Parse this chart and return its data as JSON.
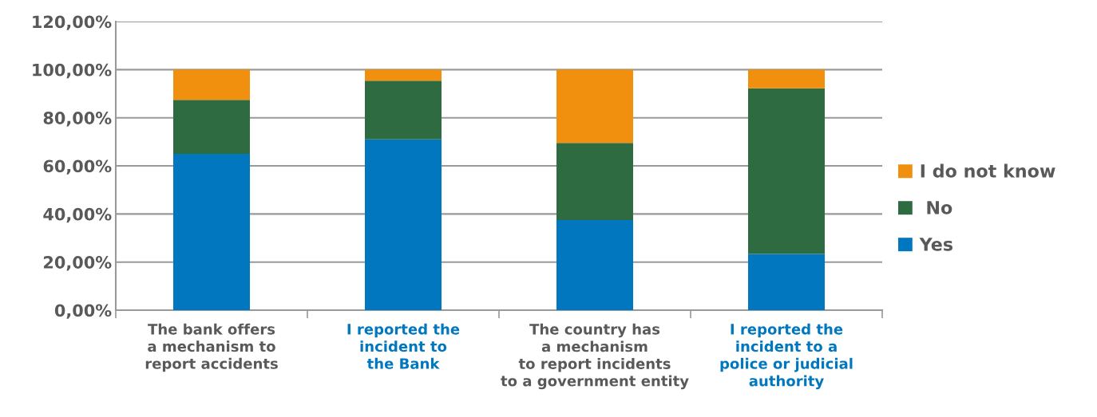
{
  "chart_data": {
    "type": "bar",
    "stacked": true,
    "categories": [
      "The bank offers\na mechanism to\nreport accidents",
      "I reported the\nincident to\nthe Bank",
      "The country has\na mechanism\nto report incidents\nto a government entity",
      "I reported the\nincident to a\npolice or judicial\nauthority"
    ],
    "series": [
      {
        "name": "Yes",
        "color": "#0077be",
        "values": [
          65,
          71,
          37.5,
          23.4
        ]
      },
      {
        "name": " No",
        "color": "#2e6b40",
        "values": [
          22.4,
          24.4,
          32,
          68.8
        ]
      },
      {
        "name": "I do not know",
        "color": "#f0900e",
        "values": [
          12.6,
          4.6,
          30.5,
          7.8
        ]
      }
    ],
    "ylim": [
      0,
      120
    ],
    "yticks": [
      {
        "value": 0,
        "label": "0,00%"
      },
      {
        "value": 20,
        "label": "20,00%"
      },
      {
        "value": 40,
        "label": "40,00%"
      },
      {
        "value": 60,
        "label": "60,00%"
      },
      {
        "value": 80,
        "label": "80,00%"
      },
      {
        "value": 100,
        "label": "100,00%"
      },
      {
        "value": 120,
        "label": "120,00%"
      }
    ],
    "grid": "y",
    "legend": "right"
  }
}
